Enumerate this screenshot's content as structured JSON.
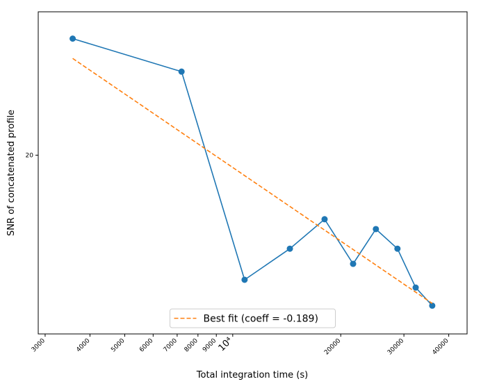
{
  "chart_data": {
    "type": "line",
    "x_label": "Total integration time (s)",
    "y_label": "SNR of concatenated profile",
    "xscale": "log",
    "yscale": "log",
    "xlim": [
      2870,
      45000
    ],
    "ylim": [
      14.56,
      25.8
    ],
    "xticks": [
      3000,
      4000,
      5000,
      6000,
      7000,
      8000,
      9000,
      {
        "value": 10000,
        "label": "10⁴"
      },
      20000,
      30000,
      40000
    ],
    "yticks": [
      20
    ],
    "legend": "lower center",
    "series": [
      {
        "color": "#1f77b4",
        "style": "solid",
        "marker": "circle",
        "x": [
          3580,
          7200,
          10790,
          14430,
          18030,
          21650,
          25060,
          28780,
          32350,
          35980
        ],
        "values": [
          24.6,
          23.2,
          16.03,
          16.94,
          17.85,
          16.49,
          17.54,
          16.94,
          15.81,
          15.31
        ]
      },
      {
        "name": "Best fit (coeff = -0.189)",
        "color": "#ff7f0e",
        "style": "dashed",
        "x": [
          3580,
          35980
        ],
        "values": [
          23.75,
          15.37
        ]
      }
    ]
  }
}
